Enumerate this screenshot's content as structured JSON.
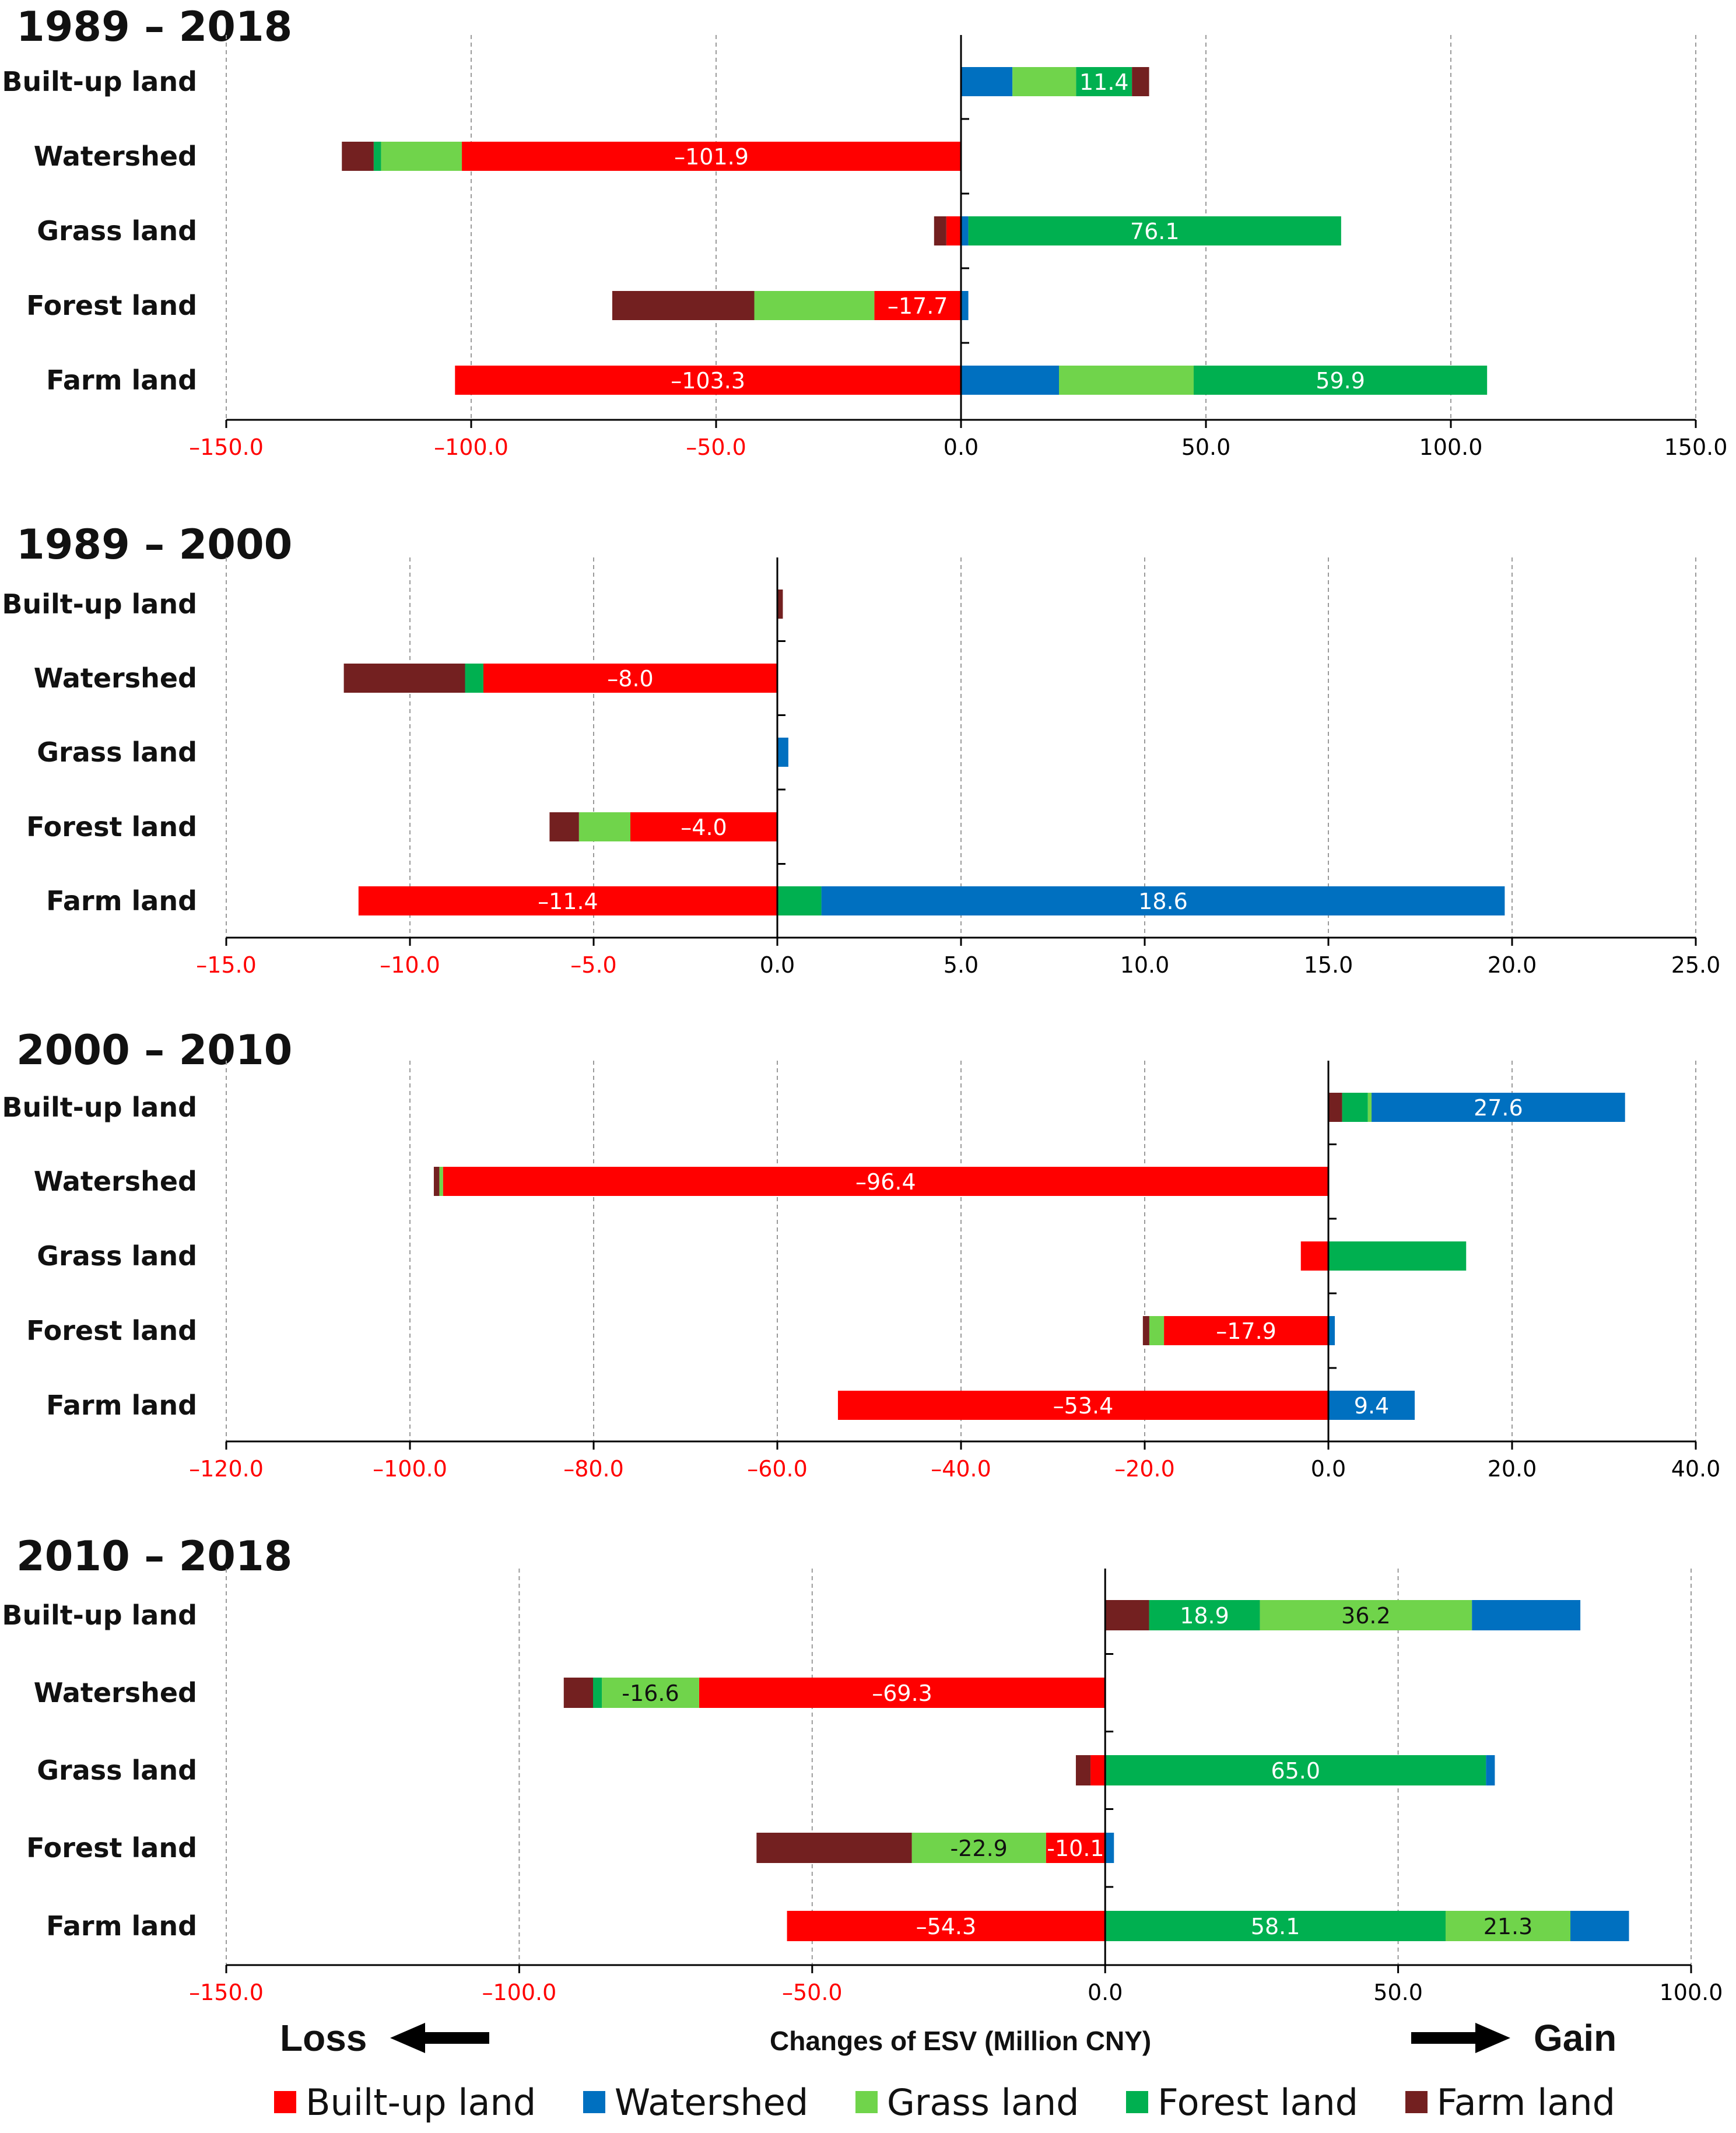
{
  "colors": {
    "Built-up land": "#ff0000",
    "Watershed": "#0070c0",
    "Grass land": "#70d44b",
    "Forest land": "#00b050",
    "Farm land": "#732020",
    "tick_negative": "#ff0000",
    "tick_positive": "#000000"
  },
  "chart_data": [
    {
      "type": "bar",
      "orientation": "horizontal",
      "stacked": "diverging",
      "title": "1989 – 2018",
      "categories": [
        "Built-up land",
        "Watershed",
        "Grass land",
        "Forest land",
        "Farm land"
      ],
      "xlim": [
        -150,
        150
      ],
      "xticks": [
        -150,
        -100,
        -50,
        0,
        50,
        100,
        150
      ],
      "tick_labels": [
        "–150.0",
        "–100.0",
        "–50.0",
        "0.0",
        "50.0",
        "100.0",
        "150.0"
      ],
      "grid": true,
      "bars": [
        {
          "category": "Built-up land",
          "segments": [
            {
              "series": "Watershed",
              "value": 10.5
            },
            {
              "series": "Grass land",
              "value": 13.0
            },
            {
              "series": "Forest land",
              "value": 11.4,
              "label": "11.4"
            },
            {
              "series": "Farm land",
              "value": 3.5
            }
          ]
        },
        {
          "category": "Watershed",
          "segments": [
            {
              "series": "Built-up land",
              "value": -101.9,
              "label": "–101.9"
            },
            {
              "series": "Grass land",
              "value": -16.5
            },
            {
              "series": "Forest land",
              "value": -1.5
            },
            {
              "series": "Farm land",
              "value": -6.5
            }
          ]
        },
        {
          "category": "Grass land",
          "segments": [
            {
              "series": "Watershed",
              "value": 1.5
            },
            {
              "series": "Forest land",
              "value": 76.1,
              "label": "76.1"
            },
            {
              "series": "Built-up land",
              "value": -3.0
            },
            {
              "series": "Farm land",
              "value": -2.5
            }
          ]
        },
        {
          "category": "Forest land",
          "segments": [
            {
              "series": "Watershed",
              "value": 1.5
            },
            {
              "series": "Built-up land",
              "value": -17.7,
              "label": "–17.7"
            },
            {
              "series": "Grass land",
              "value": -24.5
            },
            {
              "series": "Farm land",
              "value": -29.0
            }
          ]
        },
        {
          "category": "Farm land",
          "segments": [
            {
              "series": "Watershed",
              "value": 20.0
            },
            {
              "series": "Grass land",
              "value": 27.5
            },
            {
              "series": "Forest land",
              "value": 59.9,
              "label": "59.9"
            },
            {
              "series": "Built-up land",
              "value": -103.3,
              "label": "–103.3"
            }
          ]
        }
      ]
    },
    {
      "type": "bar",
      "orientation": "horizontal",
      "stacked": "diverging",
      "title": "1989 – 2000",
      "categories": [
        "Built-up land",
        "Watershed",
        "Grass land",
        "Forest land",
        "Farm land"
      ],
      "xlim": [
        -15,
        25
      ],
      "xticks": [
        -15,
        -10,
        -5,
        0,
        5,
        10,
        15,
        20,
        25
      ],
      "tick_labels": [
        "–15.0",
        "–10.0",
        "–5.0",
        "0.0",
        "5.0",
        "10.0",
        "15.0",
        "20.0",
        "25.0"
      ],
      "grid": true,
      "bars": [
        {
          "category": "Built-up land",
          "segments": [
            {
              "series": "Farm land",
              "value": 0.15
            }
          ]
        },
        {
          "category": "Watershed",
          "segments": [
            {
              "series": "Built-up land",
              "value": -8.0,
              "label": "–8.0"
            },
            {
              "series": "Forest land",
              "value": -0.5
            },
            {
              "series": "Farm land",
              "value": -3.3
            }
          ]
        },
        {
          "category": "Grass land",
          "segments": [
            {
              "series": "Watershed",
              "value": 0.3
            }
          ]
        },
        {
          "category": "Forest land",
          "segments": [
            {
              "series": "Built-up land",
              "value": -4.0,
              "label": "–4.0"
            },
            {
              "series": "Grass land",
              "value": -1.4
            },
            {
              "series": "Farm land",
              "value": -0.8
            }
          ]
        },
        {
          "category": "Farm land",
          "segments": [
            {
              "series": "Forest land",
              "value": 1.2
            },
            {
              "series": "Watershed",
              "value": 18.6,
              "label": "18.6"
            },
            {
              "series": "Built-up land",
              "value": -11.4,
              "label": "–11.4"
            }
          ]
        }
      ]
    },
    {
      "type": "bar",
      "orientation": "horizontal",
      "stacked": "diverging",
      "title": "2000 – 2010",
      "categories": [
        "Built-up land",
        "Watershed",
        "Grass land",
        "Forest land",
        "Farm land"
      ],
      "xlim": [
        -120,
        40
      ],
      "xticks": [
        -120,
        -100,
        -80,
        -60,
        -40,
        -20,
        0,
        20,
        40
      ],
      "tick_labels": [
        "–120.0",
        "–100.0",
        "–80.0",
        "–60.0",
        "–40.0",
        "–20.0",
        "0.0",
        "20.0",
        "40.0"
      ],
      "grid": true,
      "bars": [
        {
          "category": "Built-up land",
          "segments": [
            {
              "series": "Farm land",
              "value": 1.5
            },
            {
              "series": "Forest land",
              "value": 2.8
            },
            {
              "series": "Grass land",
              "value": 0.4
            },
            {
              "series": "Watershed",
              "value": 27.6,
              "label": "27.6"
            }
          ]
        },
        {
          "category": "Watershed",
          "segments": [
            {
              "series": "Built-up land",
              "value": -96.4,
              "label": "–96.4"
            },
            {
              "series": "Grass land",
              "value": -0.4
            },
            {
              "series": "Farm land",
              "value": -0.6
            }
          ]
        },
        {
          "category": "Grass land",
          "segments": [
            {
              "series": "Forest land",
              "value": 15.0
            },
            {
              "series": "Built-up land",
              "value": -3.0
            }
          ]
        },
        {
          "category": "Forest land",
          "segments": [
            {
              "series": "Watershed",
              "value": 0.7
            },
            {
              "series": "Built-up land",
              "value": -17.9,
              "label": "–17.9"
            },
            {
              "series": "Grass land",
              "value": -1.6
            },
            {
              "series": "Farm land",
              "value": -0.7
            }
          ]
        },
        {
          "category": "Farm land",
          "segments": [
            {
              "series": "Watershed",
              "value": 9.4,
              "label": "9.4"
            },
            {
              "series": "Built-up land",
              "value": -53.4,
              "label": "–53.4"
            }
          ]
        }
      ]
    },
    {
      "type": "bar",
      "orientation": "horizontal",
      "stacked": "diverging",
      "title": "2010 – 2018",
      "categories": [
        "Built-up land",
        "Watershed",
        "Grass land",
        "Forest land",
        "Farm land"
      ],
      "xlim": [
        -150,
        100
      ],
      "xticks": [
        -150,
        -100,
        -50,
        0,
        50,
        100
      ],
      "tick_labels": [
        "–150.0",
        "–100.0",
        "–50.0",
        "0.0",
        "50.0",
        "100.0"
      ],
      "grid": true,
      "bars": [
        {
          "category": "Built-up land",
          "segments": [
            {
              "series": "Farm land",
              "value": 7.5
            },
            {
              "series": "Forest land",
              "value": 18.9,
              "label": "18.9"
            },
            {
              "series": "Grass land",
              "value": 36.2,
              "label": "36.2"
            },
            {
              "series": "Watershed",
              "value": 18.5
            }
          ]
        },
        {
          "category": "Watershed",
          "segments": [
            {
              "series": "Built-up land",
              "value": -69.3,
              "label": "–69.3"
            },
            {
              "series": "Grass land",
              "value": -16.6,
              "label": "-16.6"
            },
            {
              "series": "Forest land",
              "value": -1.5
            },
            {
              "series": "Farm land",
              "value": -5.0
            }
          ]
        },
        {
          "category": "Grass land",
          "segments": [
            {
              "series": "Forest land",
              "value": 65.0,
              "label": "65.0"
            },
            {
              "series": "Watershed",
              "value": 1.5
            },
            {
              "series": "Built-up land",
              "value": -2.5
            },
            {
              "series": "Farm land",
              "value": -2.5
            }
          ]
        },
        {
          "category": "Forest land",
          "segments": [
            {
              "series": "Watershed",
              "value": 1.5
            },
            {
              "series": "Built-up land",
              "value": -10.1,
              "label": "-10.1"
            },
            {
              "series": "Grass land",
              "value": -22.9,
              "label": "-22.9"
            },
            {
              "series": "Farm land",
              "value": -26.5
            }
          ]
        },
        {
          "category": "Farm land",
          "segments": [
            {
              "series": "Forest land",
              "value": 58.1,
              "label": "58.1"
            },
            {
              "series": "Grass land",
              "value": 21.3,
              "label": "21.3"
            },
            {
              "series": "Watershed",
              "value": 10.0
            },
            {
              "series": "Built-up land",
              "value": -54.3,
              "label": "–54.3"
            }
          ]
        }
      ]
    }
  ],
  "footer": {
    "loss_label": "Loss",
    "gain_label": "Gain",
    "xaxis_title": "Changes of ESV (Million CNY)"
  },
  "legend": [
    {
      "label": "Built-up land",
      "color": "#ff0000"
    },
    {
      "label": "Watershed",
      "color": "#0070c0"
    },
    {
      "label": "Grass land",
      "color": "#70d44b"
    },
    {
      "label": "Forest land",
      "color": "#00b050"
    },
    {
      "label": "Farm land",
      "color": "#732020"
    }
  ]
}
